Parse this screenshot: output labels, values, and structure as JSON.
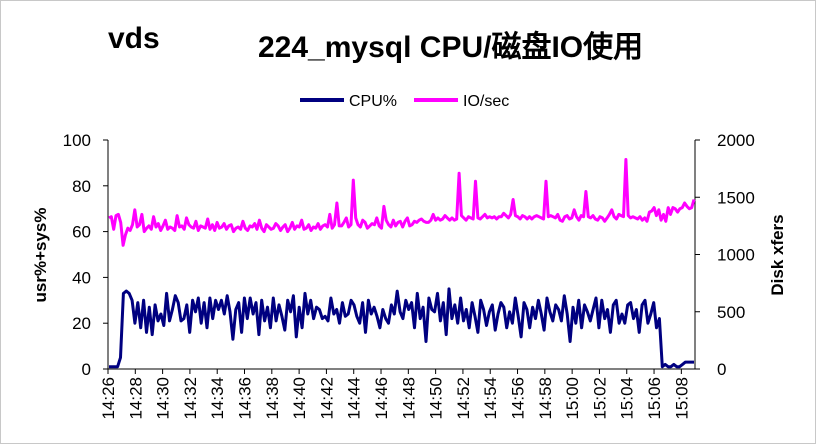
{
  "chart_data": {
    "type": "line",
    "title_left": "vds",
    "title": "224_mysql  CPU/磁盘IO使用",
    "ylabel_left": "usr%+sys%",
    "ylabel_right": "Disk xfers",
    "ylim_left": [
      0,
      100
    ],
    "ylim_right": [
      0,
      2000
    ],
    "yticks_left": [
      "0",
      "20",
      "40",
      "60",
      "80",
      "100"
    ],
    "yticks_right": [
      "0",
      "500",
      "1000",
      "1500",
      "2000"
    ],
    "xticks": [
      "14:26",
      "14:28",
      "14:30",
      "14:32",
      "14:34",
      "14:36",
      "14:38",
      "14:40",
      "14:42",
      "14:44",
      "14:46",
      "14:48",
      "14:50",
      "14:52",
      "14:54",
      "14:56",
      "14:58",
      "15:00",
      "15:02",
      "15:04",
      "15:06",
      "15:08"
    ],
    "x_start_minutes": 0,
    "x_end_minutes": 43,
    "legend_position": "top",
    "series": [
      {
        "name": "CPU%",
        "axis": "left",
        "color": "#000080",
        "values": [
          1,
          1,
          1,
          1,
          5,
          33,
          34,
          33,
          30,
          20,
          29,
          18,
          30,
          16,
          27,
          15,
          28,
          21,
          24,
          19,
          33,
          21,
          26,
          32,
          29,
          21,
          22,
          28,
          16,
          30,
          25,
          31,
          20,
          29,
          18,
          31,
          22,
          30,
          26,
          30,
          24,
          32,
          25,
          13,
          26,
          29,
          16,
          31,
          22,
          31,
          24,
          29,
          15,
          30,
          21,
          27,
          18,
          31,
          21,
          28,
          23,
          17,
          30,
          25,
          32,
          14,
          27,
          18,
          33,
          24,
          30,
          22,
          27,
          26,
          22,
          23,
          21,
          31,
          24,
          26,
          20,
          29,
          23,
          24,
          30,
          28,
          23,
          20,
          29,
          16,
          30,
          24,
          27,
          23,
          18,
          26,
          22,
          20,
          28,
          24,
          34,
          25,
          22,
          30,
          26,
          29,
          18,
          33,
          22,
          27,
          12,
          31,
          26,
          25,
          33,
          21,
          29,
          15,
          35,
          22,
          28,
          20,
          31,
          21,
          26,
          18,
          29,
          23,
          16,
          30,
          26,
          19,
          25,
          28,
          17,
          24,
          29,
          27,
          18,
          25,
          20,
          31,
          23,
          14,
          29,
          26,
          18,
          27,
          22,
          30,
          24,
          17,
          31,
          25,
          21,
          28,
          26,
          21,
          32,
          24,
          12,
          27,
          20,
          30,
          18,
          28,
          25,
          21,
          26,
          31,
          18,
          30,
          22,
          26,
          16,
          28,
          30,
          20,
          24,
          20,
          28,
          29,
          22,
          26,
          16,
          28,
          30,
          20,
          24,
          29,
          18,
          22,
          1,
          2,
          1,
          1,
          2,
          1,
          1,
          2,
          3,
          3,
          3,
          3
        ]
      },
      {
        "name": "IO/sec",
        "axis": "right",
        "color": "#ff00ff",
        "values": [
          1320,
          1330,
          1220,
          1340,
          1350,
          1280,
          1080,
          1170,
          1230,
          1210,
          1260,
          1390,
          1240,
          1260,
          1350,
          1200,
          1230,
          1250,
          1220,
          1330,
          1240,
          1270,
          1210,
          1250,
          1300,
          1220,
          1240,
          1230,
          1210,
          1340,
          1240,
          1250,
          1220,
          1320,
          1260,
          1240,
          1230,
          1290,
          1210,
          1250,
          1240,
          1230,
          1310,
          1220,
          1260,
          1210,
          1280,
          1230,
          1240,
          1270,
          1220,
          1250,
          1260,
          1200,
          1230,
          1240,
          1220,
          1290,
          1230,
          1210,
          1250,
          1240,
          1270,
          1220,
          1300,
          1230,
          1200,
          1260,
          1240,
          1220,
          1230,
          1270,
          1250,
          1210,
          1240,
          1260,
          1200,
          1230,
          1280,
          1220,
          1250,
          1240,
          1300,
          1220,
          1230,
          1260,
          1210,
          1240,
          1230,
          1270,
          1220,
          1250,
          1260,
          1240,
          1350,
          1230,
          1260,
          1450,
          1250,
          1250,
          1280,
          1320,
          1240,
          1260,
          1650,
          1320,
          1260,
          1240,
          1300,
          1280,
          1230,
          1250,
          1270,
          1260,
          1320,
          1250,
          1230,
          1420,
          1300,
          1260,
          1240,
          1300,
          1250,
          1280,
          1290,
          1240,
          1290,
          1320,
          1250,
          1260,
          1290,
          1280,
          1300,
          1310,
          1290,
          1280,
          1280,
          1300,
          1350,
          1300,
          1320,
          1300,
          1310,
          1340,
          1320,
          1300,
          1320,
          1300,
          1310,
          1710,
          1340,
          1320,
          1300,
          1330,
          1320,
          1310,
          1640,
          1320,
          1310,
          1330,
          1350,
          1320,
          1330,
          1320,
          1330,
          1310,
          1330,
          1330,
          1360,
          1340,
          1320,
          1350,
          1480,
          1340,
          1330,
          1310,
          1340,
          1330,
          1310,
          1330,
          1310,
          1330,
          1340,
          1330,
          1320,
          1310,
          1640,
          1330,
          1340,
          1330,
          1320,
          1350,
          1300,
          1290,
          1330,
          1340,
          1310,
          1320,
          1390,
          1330,
          1300,
          1340,
          1330,
          1550,
          1330,
          1320,
          1340,
          1310,
          1300,
          1330,
          1320,
          1290,
          1320,
          1350,
          1390,
          1330,
          1310,
          1350,
          1340,
          1330,
          1830,
          1340,
          1320,
          1330,
          1320,
          1310,
          1330,
          1300,
          1320,
          1290,
          1370,
          1380,
          1410,
          1340,
          1390,
          1300,
          1350,
          1290,
          1410,
          1350,
          1410,
          1400,
          1370,
          1400,
          1410,
          1450,
          1420,
          1400,
          1410,
          1480
        ]
      }
    ]
  }
}
